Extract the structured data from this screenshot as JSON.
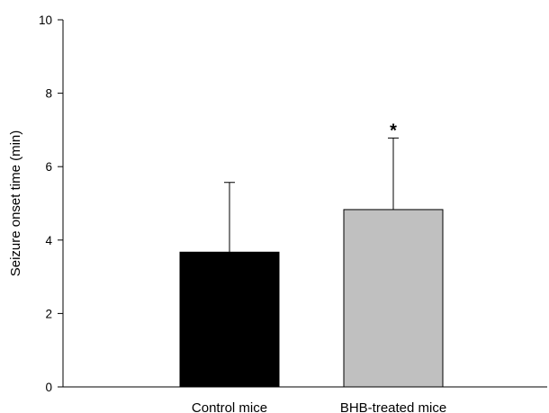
{
  "chart_data": {
    "type": "bar",
    "title": "",
    "xlabel": "",
    "ylabel": "Seizure onset time (min)",
    "ylim": [
      0,
      10
    ],
    "yticks": [
      0,
      2,
      4,
      6,
      8,
      10
    ],
    "grid": false,
    "legend": "none",
    "categories": [
      "Control mice",
      "BHB-treated mice"
    ],
    "values": [
      3.67,
      4.83
    ],
    "error_upper": [
      1.9,
      1.95
    ],
    "colors": [
      "#000000",
      "#c0c0c0"
    ],
    "annotations": [
      {
        "category": "BHB-treated mice",
        "text": "*"
      }
    ]
  }
}
